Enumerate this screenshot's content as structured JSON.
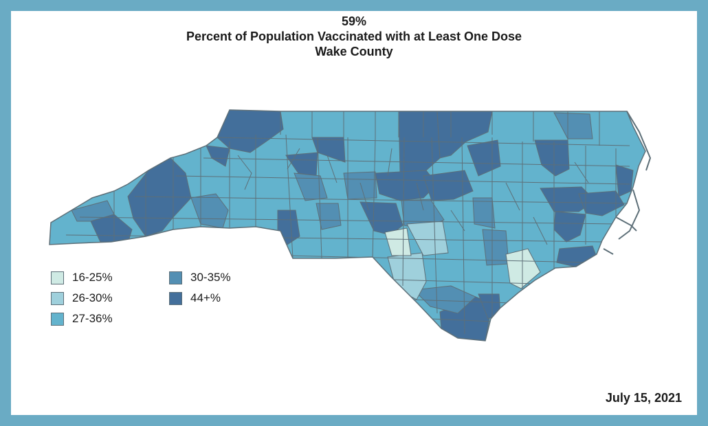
{
  "title": {
    "line1": "59%",
    "line2": "Percent of Population Vaccinated with at Least One Dose",
    "line3": "Wake County"
  },
  "legend": [
    {
      "label": "16-25%",
      "color": "#cfeae4"
    },
    {
      "label": "26-30%",
      "color": "#9fd0dc"
    },
    {
      "label": "27-36%",
      "color": "#63b3cd"
    },
    {
      "label": "30-35%",
      "color": "#538fb3"
    },
    {
      "label": "44+%",
      "color": "#436f9b"
    }
  ],
  "date": "July 15, 2021",
  "colors": {
    "frame": "#6aabc4",
    "county_border": "#5d6f78"
  }
}
